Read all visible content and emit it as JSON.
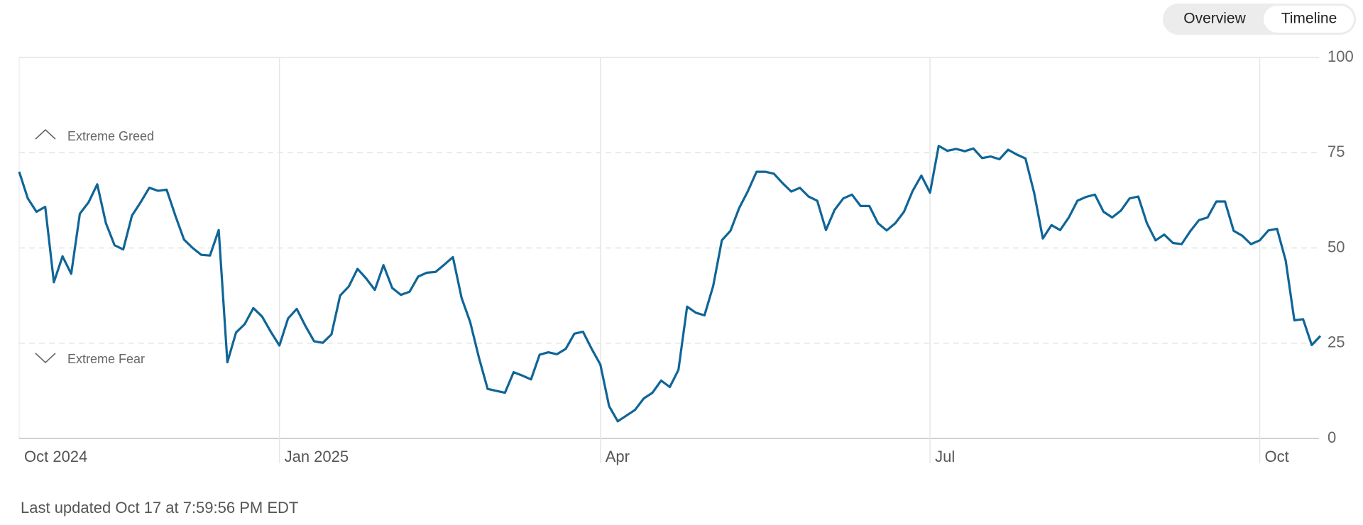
{
  "tabs": [
    "Overview",
    "Timeline"
  ],
  "active_tab": 1,
  "footer": "Last updated Oct 17 at 7:59:56 PM EDT",
  "chart_data": {
    "type": "line",
    "annotations": [
      "Extreme Greed",
      "Extreme Fear"
    ],
    "categories": [
      "Oct 2024",
      null,
      null,
      null,
      null,
      null,
      null,
      null,
      null,
      null,
      null,
      null,
      null,
      null,
      null,
      null,
      null,
      null,
      null,
      null,
      null,
      null,
      null,
      null,
      null,
      null,
      null,
      null,
      null,
      null,
      "Jan 2025",
      null,
      null,
      null,
      null,
      null,
      null,
      null,
      null,
      null,
      null,
      null,
      null,
      null,
      null,
      null,
      null,
      null,
      null,
      null,
      null,
      null,
      null,
      null,
      null,
      null,
      null,
      null,
      null,
      null,
      null,
      null,
      null,
      null,
      null,
      null,
      null,
      "Apr",
      null,
      null,
      null,
      null,
      null,
      null,
      null,
      null,
      null,
      null,
      null,
      null,
      null,
      null,
      null,
      null,
      null,
      null,
      null,
      null,
      null,
      null,
      null,
      null,
      null,
      null,
      null,
      null,
      null,
      null,
      null,
      null,
      null,
      null,
      null,
      null,
      null,
      "Jul",
      null,
      null,
      null,
      null,
      null,
      null,
      null,
      null,
      null,
      null,
      null,
      null,
      null,
      null,
      null,
      null,
      null,
      null,
      null,
      null,
      null,
      null,
      null,
      null,
      null,
      null,
      null,
      null,
      null,
      null,
      null,
      null,
      null,
      null,
      null,
      null,
      null,
      "Oct",
      null,
      null,
      null,
      null,
      null,
      null,
      null
    ],
    "values": [
      70,
      63,
      59.5,
      60.8,
      41,
      47.8,
      43.2,
      59,
      62,
      66.7,
      56.5,
      50.7,
      49.6,
      58.5,
      62,
      65.8,
      65,
      65.3,
      58.5,
      52.2,
      50,
      48.2,
      48,
      54.7,
      20,
      27.8,
      30,
      34.2,
      32,
      28,
      24.4,
      31.5,
      34,
      29.5,
      25.5,
      25.1,
      27.3,
      37.5,
      39.9,
      44.5,
      42,
      39,
      45.5,
      39.5,
      37.7,
      38.5,
      42.5,
      43.5,
      43.7,
      45.6,
      47.6,
      36.9,
      30.5,
      21.2,
      13,
      12.5,
      12,
      17.4,
      16.5,
      15.5,
      22,
      22.6,
      22.1,
      23.5,
      27.5,
      28,
      23.5,
      19.4,
      8.5,
      4.5,
      6,
      7.5,
      10.5,
      12,
      15.2,
      13.5,
      18,
      34.6,
      33,
      32.3,
      40,
      52,
      54.5,
      60.5,
      64.9,
      70,
      70,
      69.5,
      67,
      64.8,
      65.8,
      63.5,
      62.4,
      54.7,
      60,
      63,
      64,
      61,
      61,
      56.5,
      54.6,
      56.5,
      59.5,
      65,
      69,
      64.5,
      76.8,
      75.5,
      76,
      75.4,
      76.1,
      73.6,
      74,
      73.3,
      75.8,
      74.5,
      73.5,
      64.5,
      52.5,
      56,
      54.7,
      58,
      62.4,
      63.4,
      64,
      59.5,
      58,
      59.8,
      63,
      63.5,
      56.5,
      52,
      53.5,
      51.3,
      51,
      54.4,
      57.3,
      58,
      62.2,
      62.2,
      54.5,
      53.2,
      51,
      52,
      54.6,
      55,
      46.7,
      31,
      31.3,
      24.5,
      26.9
    ],
    "color": "#0f6597",
    "ylim": [
      0,
      100
    ],
    "yticks": [
      0,
      25,
      50,
      75,
      100
    ],
    "grid": true
  }
}
